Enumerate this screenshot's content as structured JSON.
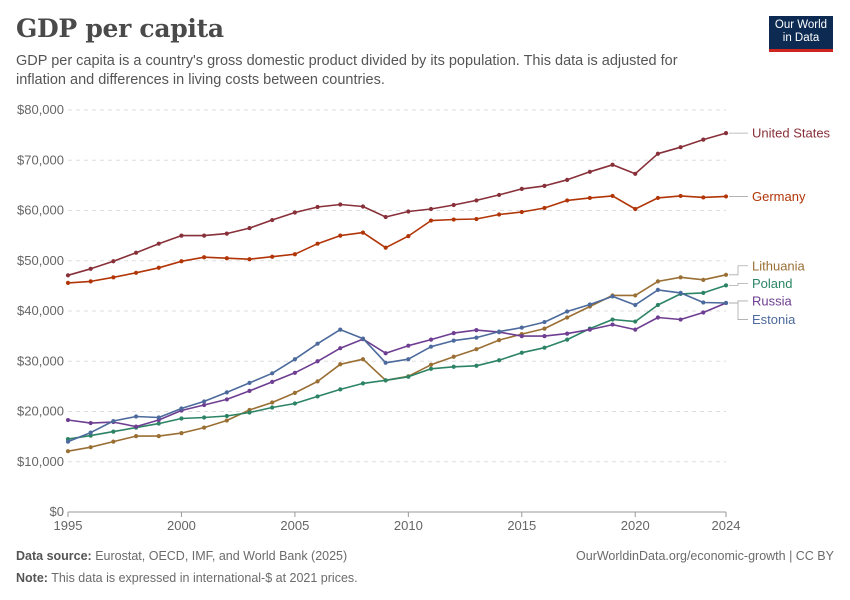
{
  "header": {
    "title": "GDP per capita",
    "subtitle": "GDP per capita is a country's gross domestic product divided by its population. This data is adjusted for inflation and differences in living costs between countries."
  },
  "logo": {
    "line1": "Our World",
    "line2": "in Data",
    "bg_color": "#0d2a52",
    "accent_color": "#ce261e"
  },
  "footer": {
    "source_label": "Data source:",
    "source_text": "Eurostat, OECD, IMF, and World Bank (2025)",
    "note_label": "Note:",
    "note_text": "This data is expressed in international-$ at 2021 prices.",
    "link": "OurWorldinData.org/economic-growth | CC BY"
  },
  "chart_data": {
    "type": "line",
    "title": "GDP per capita",
    "xlabel": "",
    "ylabel": "",
    "xlim": [
      1995,
      2024
    ],
    "ylim": [
      0,
      80000
    ],
    "x_ticks": [
      1995,
      2000,
      2005,
      2010,
      2015,
      2020,
      2024
    ],
    "y_ticks": [
      0,
      10000,
      20000,
      30000,
      40000,
      50000,
      60000,
      70000,
      80000
    ],
    "y_tick_labels": [
      "$0",
      "$10,000",
      "$20,000",
      "$30,000",
      "$40,000",
      "$50,000",
      "$60,000",
      "$70,000",
      "$80,000"
    ],
    "grid": "horizontal dashed",
    "legend": "right, labels at line ends",
    "x": [
      1995,
      1996,
      1997,
      1998,
      1999,
      2000,
      2001,
      2002,
      2003,
      2004,
      2005,
      2006,
      2007,
      2008,
      2009,
      2010,
      2011,
      2012,
      2013,
      2014,
      2015,
      2016,
      2017,
      2018,
      2019,
      2020,
      2021,
      2022,
      2023,
      2024
    ],
    "series": [
      {
        "name": "United States",
        "color": "#883039",
        "values": [
          47100,
          48400,
          49900,
          51600,
          53400,
          55000,
          55000,
          55400,
          56500,
          58100,
          59600,
          60700,
          61200,
          60800,
          58700,
          59800,
          60300,
          61100,
          62000,
          63100,
          64300,
          64900,
          66100,
          67700,
          69100,
          67300,
          71300,
          72600,
          74100,
          75400
        ]
      },
      {
        "name": "Germany",
        "color": "#b13507",
        "values": [
          45600,
          45900,
          46700,
          47600,
          48600,
          49900,
          50700,
          50500,
          50300,
          50800,
          51300,
          53400,
          55000,
          55600,
          52600,
          54900,
          58000,
          58200,
          58300,
          59200,
          59700,
          60500,
          62000,
          62500,
          62900,
          60300,
          62500,
          62900,
          62600,
          62800
        ]
      },
      {
        "name": "Lithuania",
        "color": "#9a6f34",
        "values": [
          12100,
          12900,
          14000,
          15100,
          15100,
          15700,
          16800,
          18200,
          20300,
          21800,
          23700,
          26000,
          29400,
          30400,
          26200,
          27000,
          29300,
          30900,
          32400,
          34200,
          35400,
          36500,
          38700,
          40900,
          43100,
          43100,
          45900,
          46700,
          46200,
          47200
        ]
      },
      {
        "name": "Poland",
        "color": "#2c8465",
        "values": [
          14500,
          15200,
          16000,
          16800,
          17600,
          18600,
          18800,
          19100,
          19800,
          20800,
          21600,
          23000,
          24400,
          25600,
          26200,
          26900,
          28500,
          28900,
          29100,
          30200,
          31700,
          32700,
          34300,
          36500,
          38300,
          37900,
          41200,
          43400,
          43600,
          45100
        ]
      },
      {
        "name": "Russia",
        "color": "#6d3e91",
        "values": [
          18300,
          17700,
          17900,
          17000,
          18300,
          20200,
          21300,
          22400,
          24100,
          25900,
          27700,
          30000,
          32600,
          34400,
          31600,
          33100,
          34300,
          35600,
          36200,
          35800,
          35000,
          35000,
          35500,
          36300,
          37300,
          36300,
          38700,
          38300,
          39700,
          41600
        ]
      },
      {
        "name": "Estonia",
        "color": "#4c6a9c",
        "values": [
          14000,
          15800,
          18100,
          19000,
          18800,
          20600,
          22000,
          23800,
          25700,
          27600,
          30400,
          33500,
          36300,
          34500,
          29700,
          30400,
          32900,
          34100,
          34700,
          35900,
          36700,
          37800,
          39900,
          41300,
          42900,
          41200,
          44200,
          43600,
          41700,
          41600
        ]
      }
    ],
    "line_labels": [
      {
        "name": "United States",
        "y_value": 75400
      },
      {
        "name": "Germany",
        "y_value": 62800
      },
      {
        "name": "Lithuania",
        "y_value": 49000
      },
      {
        "name": "Poland",
        "y_value": 45500
      },
      {
        "name": "Russia",
        "y_value": 42000
      },
      {
        "name": "Estonia",
        "y_value": 38300
      }
    ]
  }
}
